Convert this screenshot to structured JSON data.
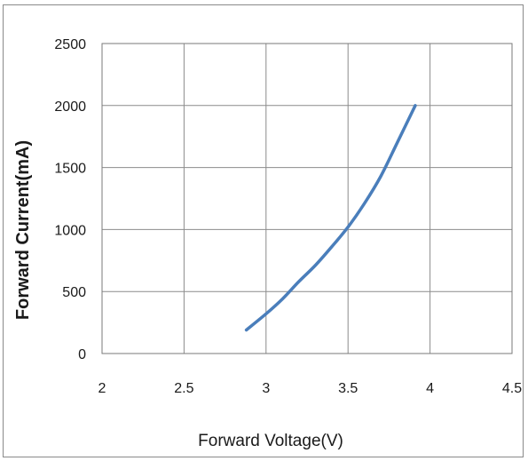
{
  "chart_data": {
    "type": "line",
    "title": "",
    "xlabel": "Forward Voltage(V)",
    "ylabel": "Forward Current(mA)",
    "xlim": [
      2,
      4.5
    ],
    "ylim": [
      0,
      2500
    ],
    "xticks": [
      "2",
      "2.5",
      "3",
      "3.5",
      "4",
      "4.5"
    ],
    "yticks": [
      "0",
      "500",
      "1000",
      "1500",
      "2000",
      "2500"
    ],
    "grid": true,
    "series": [
      {
        "color": "#4a7ebb",
        "x": [
          2.88,
          3.0,
          3.1,
          3.2,
          3.3,
          3.4,
          3.5,
          3.6,
          3.7,
          3.8,
          3.91
        ],
        "y": [
          190,
          320,
          440,
          580,
          710,
          860,
          1020,
          1210,
          1430,
          1700,
          2000
        ]
      }
    ]
  }
}
